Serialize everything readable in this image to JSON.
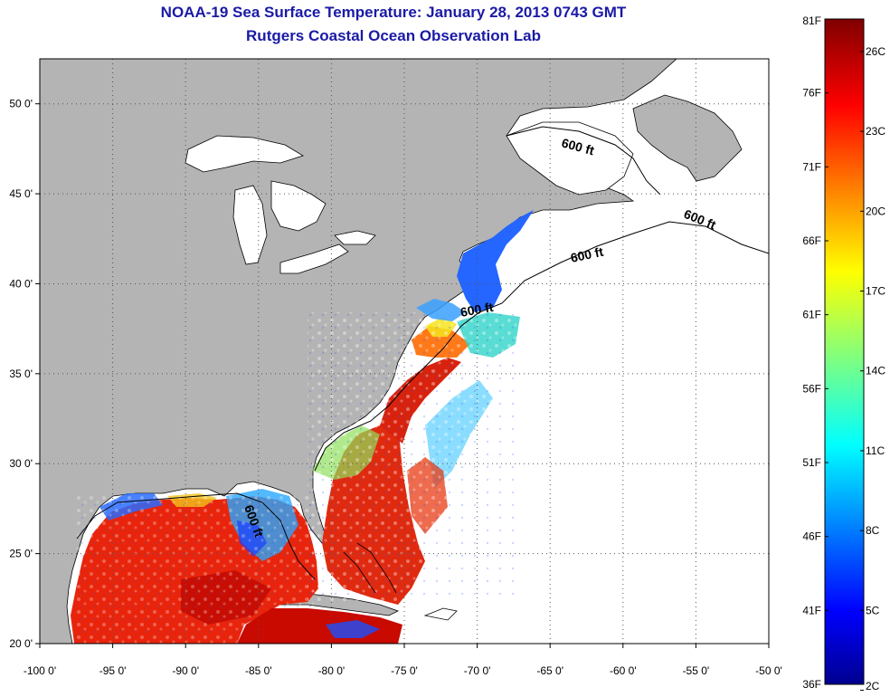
{
  "title": "NOAA-19 Sea Surface Temperature:  January 28, 2013 0743 GMT",
  "subtitle": "Rutgers Coastal Ocean Observation Lab",
  "map": {
    "lon_range": [
      -100,
      -50
    ],
    "lat_range": [
      20,
      52.5
    ],
    "lon_ticks": [
      "-100 0'",
      "-95 0'",
      "-90 0'",
      "-85 0'",
      "-80 0'",
      "-75 0'",
      "-70 0'",
      "-65 0'",
      "-60 0'",
      "-55 0'",
      "-50 0'"
    ],
    "lat_ticks": [
      "20 0'",
      "25 0'",
      "30 0'",
      "35 0'",
      "40 0'",
      "45 0'",
      "50 0'"
    ],
    "land_color": "#b4b4b4",
    "ocean_color": "#ffffff",
    "grid": "dotted",
    "contour_labels": [
      "600 ft",
      "600 ft",
      "600 ft",
      "600 ft",
      "600 ft"
    ]
  },
  "colorbar": {
    "fahrenheit_labels": [
      "81F",
      "76F",
      "71F",
      "66F",
      "61F",
      "56F",
      "51F",
      "46F",
      "41F",
      "36F"
    ],
    "celsius_labels": [
      "26C",
      "23C",
      "20C",
      "17C",
      "14C",
      "11C",
      "8C",
      "5C",
      "2C"
    ],
    "colormap": "jet",
    "colors": [
      "#00008f",
      "#0000ff",
      "#00ffff",
      "#ffff00",
      "#ff0000",
      "#800000"
    ]
  }
}
